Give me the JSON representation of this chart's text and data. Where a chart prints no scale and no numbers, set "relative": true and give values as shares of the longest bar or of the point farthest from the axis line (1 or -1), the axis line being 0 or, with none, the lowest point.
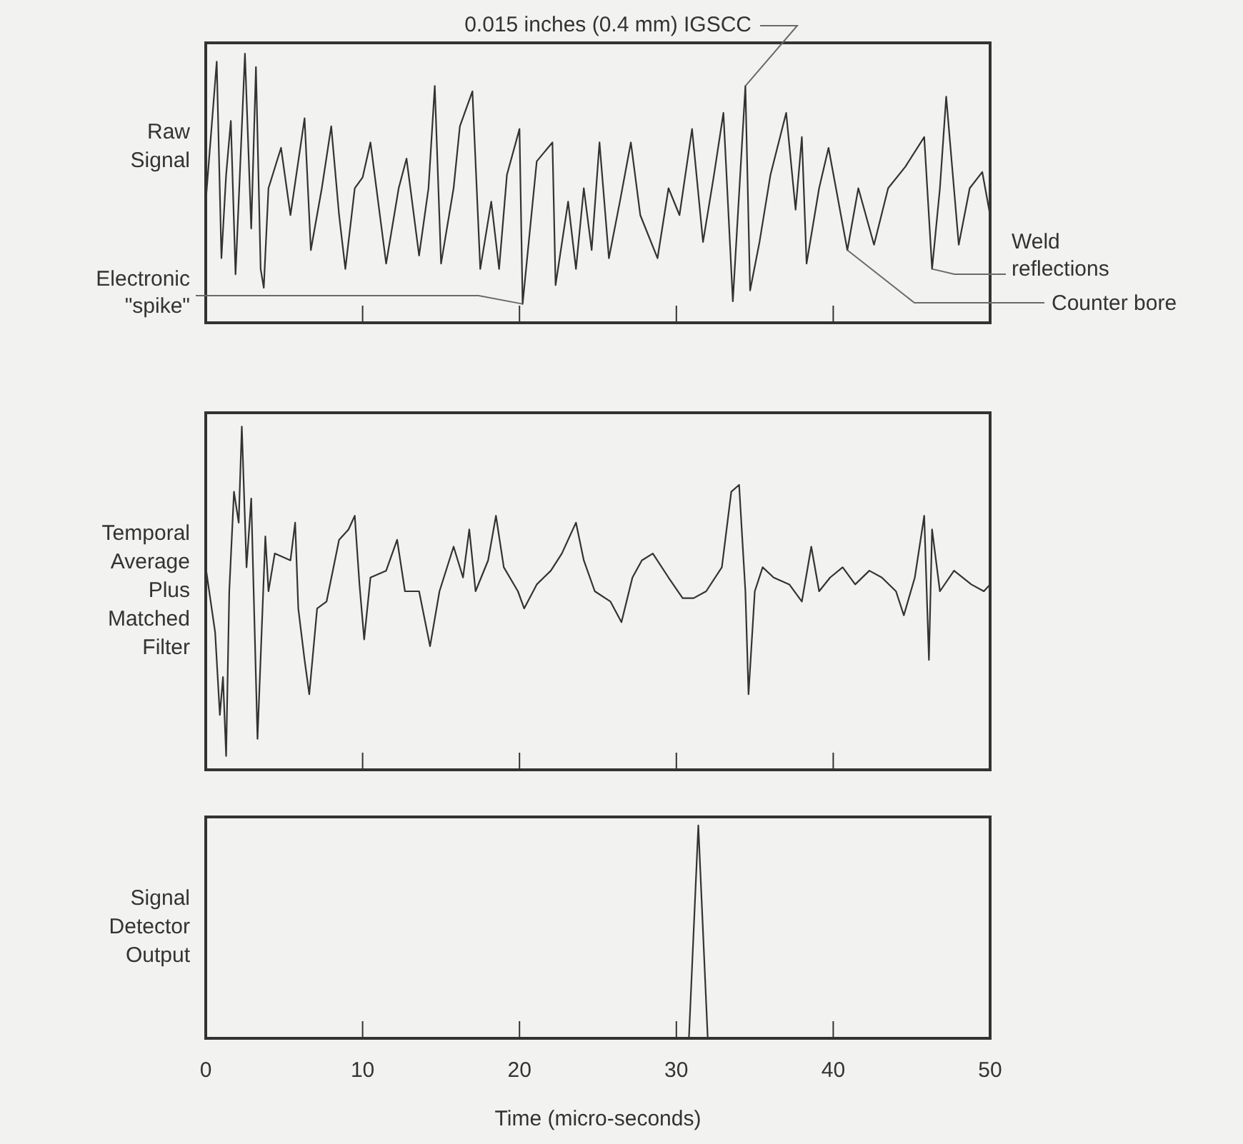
{
  "chart_data": [
    {
      "type": "line",
      "relative": true,
      "ylabel": "Raw Signal",
      "xlim": [
        0,
        50
      ],
      "xticks": [
        0,
        10,
        20,
        30,
        40,
        50
      ],
      "tick_labels": false,
      "grid": false,
      "legend": false,
      "series": [
        {
          "color": "#333333",
          "x": [
            0,
            0.7,
            1.0,
            1.3,
            1.6,
            1.9,
            2.1,
            2.5,
            2.9,
            3.2,
            3.5,
            3.7,
            4.0,
            4.8,
            5.4,
            6.3,
            6.7,
            7.4,
            8.0,
            8.5,
            8.9,
            9.5,
            10.0,
            10.5,
            11.1,
            11.5,
            12.3,
            12.8,
            13.6,
            14.2,
            14.6,
            15.0,
            15.8,
            16.2,
            17.0,
            17.5,
            18.2,
            18.7,
            19.2,
            20.0,
            20.2,
            21.1,
            22.1,
            22.3,
            23.1,
            23.6,
            24.1,
            24.6,
            25.1,
            25.7,
            26.4,
            27.1,
            27.7,
            28.8,
            29.5,
            30.2,
            31.0,
            31.7,
            32.4,
            33.0,
            33.6,
            34.4,
            34.7,
            35.3,
            36.0,
            37.0,
            37.6,
            38.0,
            38.3,
            39.1,
            39.7,
            40.9,
            41.6,
            42.6,
            43.5,
            44.6,
            45.8,
            46.3,
            46.8,
            47.2,
            48.0,
            48.7,
            49.5,
            50.0
          ],
          "values": [
            0.45,
            0.97,
            0.24,
            0.55,
            0.75,
            0.18,
            0.45,
            1.0,
            0.35,
            0.95,
            0.2,
            0.13,
            0.5,
            0.65,
            0.4,
            0.76,
            0.27,
            0.5,
            0.73,
            0.4,
            0.2,
            0.5,
            0.54,
            0.67,
            0.4,
            0.22,
            0.5,
            0.61,
            0.25,
            0.5,
            0.88,
            0.22,
            0.5,
            0.73,
            0.86,
            0.2,
            0.45,
            0.2,
            0.55,
            0.72,
            0.07,
            0.6,
            0.67,
            0.14,
            0.45,
            0.2,
            0.5,
            0.27,
            0.67,
            0.24,
            0.45,
            0.67,
            0.4,
            0.24,
            0.5,
            0.4,
            0.72,
            0.3,
            0.55,
            0.78,
            0.08,
            0.88,
            0.12,
            0.3,
            0.55,
            0.78,
            0.42,
            0.69,
            0.22,
            0.5,
            0.65,
            0.27,
            0.5,
            0.29,
            0.5,
            0.58,
            0.69,
            0.2,
            0.5,
            0.84,
            0.29,
            0.5,
            0.56,
            0.4
          ]
        }
      ],
      "annotations": [
        {
          "text": "0.015 inches (0.4 mm) IGSCC",
          "x": 34.4,
          "y": 0.88
        },
        {
          "text": "Electronic \"spike\"",
          "x": 20.2,
          "y": 0.07
        },
        {
          "text": "Weld reflections",
          "x": 46.3,
          "y": 0.2
        },
        {
          "text": "Counter bore",
          "x": 40.9,
          "y": 0.27
        }
      ]
    },
    {
      "type": "line",
      "relative": true,
      "ylabel": "Temporal Average Plus Matched Filter",
      "xlim": [
        0,
        50
      ],
      "xticks": [
        0,
        10,
        20,
        30,
        40,
        50
      ],
      "tick_labels": false,
      "grid": false,
      "legend": false,
      "series": [
        {
          "color": "#333333",
          "x": [
            0,
            0.6,
            0.9,
            1.1,
            1.3,
            1.5,
            1.8,
            2.1,
            2.3,
            2.6,
            2.9,
            3.3,
            3.8,
            4.0,
            4.4,
            5.4,
            5.7,
            5.9,
            6.3,
            6.6,
            7.1,
            7.7,
            8.5,
            9.1,
            9.5,
            9.8,
            10.1,
            10.5,
            11.5,
            12.2,
            12.7,
            13.6,
            14.3,
            14.9,
            15.8,
            16.4,
            16.8,
            17.2,
            18.0,
            18.5,
            19.0,
            19.9,
            20.3,
            21.1,
            22.0,
            22.7,
            23.6,
            24.1,
            24.8,
            25.8,
            26.5,
            27.2,
            27.8,
            28.5,
            29.5,
            30.4,
            31.1,
            31.9,
            32.9,
            33.5,
            34.0,
            34.4,
            34.6,
            35.0,
            35.5,
            36.2,
            37.2,
            38.0,
            38.6,
            39.1,
            39.8,
            40.6,
            41.4,
            42.3,
            43.1,
            44.0,
            44.5,
            45.2,
            45.8,
            46.1,
            46.3,
            46.8,
            47.7,
            48.8,
            49.6,
            50.0
          ],
          "values": [
            0.59,
            0.4,
            0.16,
            0.27,
            0.04,
            0.52,
            0.81,
            0.72,
            1.0,
            0.59,
            0.79,
            0.09,
            0.68,
            0.52,
            0.63,
            0.61,
            0.72,
            0.47,
            0.32,
            0.22,
            0.47,
            0.49,
            0.67,
            0.7,
            0.74,
            0.54,
            0.38,
            0.56,
            0.58,
            0.67,
            0.52,
            0.52,
            0.36,
            0.52,
            0.65,
            0.56,
            0.7,
            0.52,
            0.61,
            0.74,
            0.59,
            0.52,
            0.47,
            0.54,
            0.58,
            0.63,
            0.72,
            0.61,
            0.52,
            0.49,
            0.43,
            0.56,
            0.61,
            0.63,
            0.56,
            0.5,
            0.5,
            0.52,
            0.59,
            0.81,
            0.83,
            0.52,
            0.22,
            0.52,
            0.59,
            0.56,
            0.54,
            0.49,
            0.65,
            0.52,
            0.56,
            0.59,
            0.54,
            0.58,
            0.56,
            0.52,
            0.45,
            0.56,
            0.74,
            0.32,
            0.7,
            0.52,
            0.58,
            0.54,
            0.52,
            0.54
          ]
        }
      ]
    },
    {
      "type": "line",
      "relative": true,
      "ylabel": "Signal Detector Output",
      "xlabel": "Time (micro-seconds)",
      "xlim": [
        0,
        50
      ],
      "xticks": [
        0,
        10,
        20,
        30,
        40,
        50
      ],
      "tick_labels": "x",
      "grid": false,
      "legend": false,
      "series": [
        {
          "color": "#333333",
          "x": [
            0,
            30.8,
            31.4,
            32.0,
            50
          ],
          "values": [
            0,
            0,
            1,
            0,
            0
          ]
        }
      ]
    }
  ]
}
